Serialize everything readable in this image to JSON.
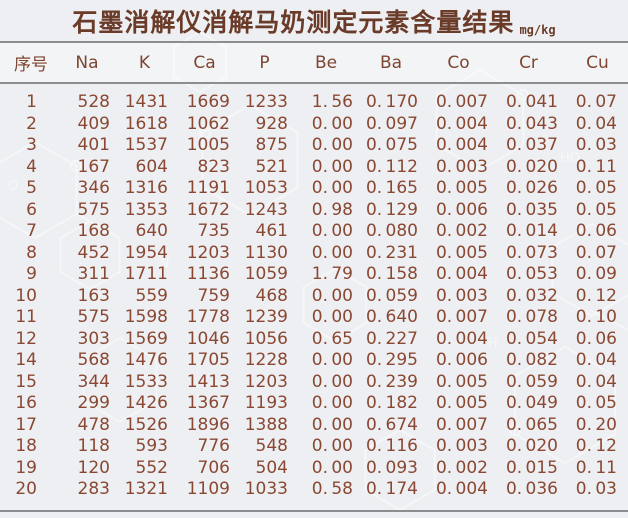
{
  "title": {
    "text": "石墨消解仪消解马奶测定元素含量结果",
    "unit": "mg/kg"
  },
  "table": {
    "columns": [
      "序号",
      "Na",
      "K",
      "Ca",
      "P",
      "Be",
      "Ba",
      "Co",
      "Cr",
      "Cu"
    ],
    "rows": [
      [
        "1",
        "528",
        "1431",
        "1669",
        "1233",
        "1.56",
        "0.170",
        "0.007",
        "0.041",
        "0.07"
      ],
      [
        "2",
        "409",
        "1618",
        "1062",
        "928",
        "0.00",
        "0.097",
        "0.004",
        "0.043",
        "0.04"
      ],
      [
        "3",
        "401",
        "1537",
        "1005",
        "875",
        "0.00",
        "0.075",
        "0.004",
        "0.037",
        "0.03"
      ],
      [
        "4",
        "167",
        "604",
        "823",
        "521",
        "0.00",
        "0.112",
        "0.003",
        "0.020",
        "0.11"
      ],
      [
        "5",
        "346",
        "1316",
        "1191",
        "1053",
        "0.00",
        "0.165",
        "0.005",
        "0.026",
        "0.05"
      ],
      [
        "6",
        "575",
        "1353",
        "1672",
        "1243",
        "0.98",
        "0.129",
        "0.006",
        "0.035",
        "0.05"
      ],
      [
        "7",
        "168",
        "640",
        "735",
        "461",
        "0.00",
        "0.080",
        "0.002",
        "0.014",
        "0.06"
      ],
      [
        "8",
        "452",
        "1954",
        "1203",
        "1130",
        "0.00",
        "0.231",
        "0.005",
        "0.073",
        "0.07"
      ],
      [
        "9",
        "311",
        "1711",
        "1136",
        "1059",
        "1.79",
        "0.158",
        "0.004",
        "0.053",
        "0.09"
      ],
      [
        "10",
        "163",
        "559",
        "759",
        "468",
        "0.00",
        "0.059",
        "0.003",
        "0.032",
        "0.12"
      ],
      [
        "11",
        "575",
        "1598",
        "1778",
        "1239",
        "0.00",
        "0.640",
        "0.007",
        "0.078",
        "0.10"
      ],
      [
        "12",
        "303",
        "1569",
        "1046",
        "1056",
        "0.65",
        "0.227",
        "0.004",
        "0.054",
        "0.06"
      ],
      [
        "14",
        "568",
        "1476",
        "1705",
        "1228",
        "0.00",
        "0.295",
        "0.006",
        "0.082",
        "0.04"
      ],
      [
        "15",
        "344",
        "1533",
        "1413",
        "1203",
        "0.00",
        "0.239",
        "0.005",
        "0.059",
        "0.04"
      ],
      [
        "16",
        "299",
        "1426",
        "1367",
        "1193",
        "0.00",
        "0.182",
        "0.005",
        "0.049",
        "0.05"
      ],
      [
        "17",
        "478",
        "1526",
        "1896",
        "1388",
        "0.00",
        "0.674",
        "0.007",
        "0.065",
        "0.20"
      ],
      [
        "18",
        "118",
        "593",
        "776",
        "548",
        "0.00",
        "0.116",
        "0.003",
        "0.020",
        "0.12"
      ],
      [
        "19",
        "120",
        "552",
        "706",
        "504",
        "0.00",
        "0.093",
        "0.002",
        "0.015",
        "0.11"
      ],
      [
        "20",
        "283",
        "1321",
        "1109",
        "1033",
        "0.58",
        "0.174",
        "0.004",
        "0.036",
        "0.03"
      ]
    ]
  },
  "style": {
    "text_color": "#8a4833",
    "title_color": "#6b3b29",
    "rule_color": "#8b8d90",
    "background_color": "#edeff2",
    "watermark_color": "#ffffff"
  }
}
